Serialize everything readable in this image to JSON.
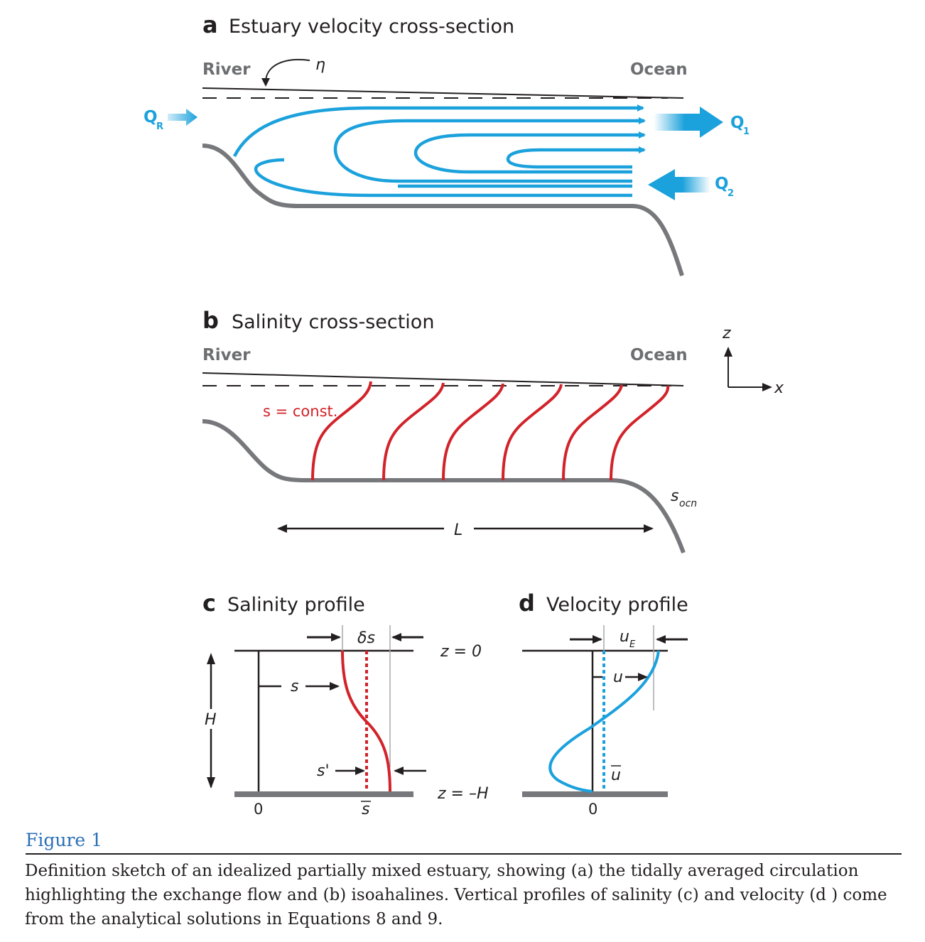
{
  "panels": {
    "a": {
      "letter": "a",
      "title": "Estuary velocity cross-section",
      "left_label": "River",
      "right_label": "Ocean"
    },
    "b": {
      "letter": "b",
      "title": "Salinity cross-section",
      "left_label": "River",
      "right_label": "Ocean"
    },
    "c": {
      "letter": "c",
      "title": "Salinity profile"
    },
    "d": {
      "letter": "d",
      "title": "Velocity profile"
    }
  },
  "symbols": {
    "eta": "η",
    "q_r": "Q",
    "q_r_sub": "R",
    "q_1": "Q",
    "q_1_sub": "1",
    "q_2": "Q",
    "q_2_sub": "2",
    "s_const": "s = const.",
    "s_ocn": "s",
    "s_ocn_sub": "ocn",
    "length": "L",
    "axis_z": "z",
    "axis_x": "x",
    "delta_s": "δs",
    "s": "s",
    "s_prime": "s'",
    "s_bar": "s",
    "h": "H",
    "zero_c": "0",
    "z0": "z = 0",
    "zH": "z = –H",
    "u_e": "u",
    "u_e_sub": "E",
    "u": "u",
    "u_bar": "u",
    "zero_d": "0"
  },
  "colors": {
    "blue": "#1ba1dc",
    "red": "#d2232a",
    "gray": "#77787b",
    "dark": "#231f20"
  },
  "figure_label": "Figure 1",
  "caption": "Definition sketch of an idealized partially mixed estuary, showing (a) the tidally averaged circulation highlighting the exchange flow and (b) isoahalines. Vertical profiles of salinity (c) and velocity (d ) come from the analytical solutions in Equations 8 and 9."
}
